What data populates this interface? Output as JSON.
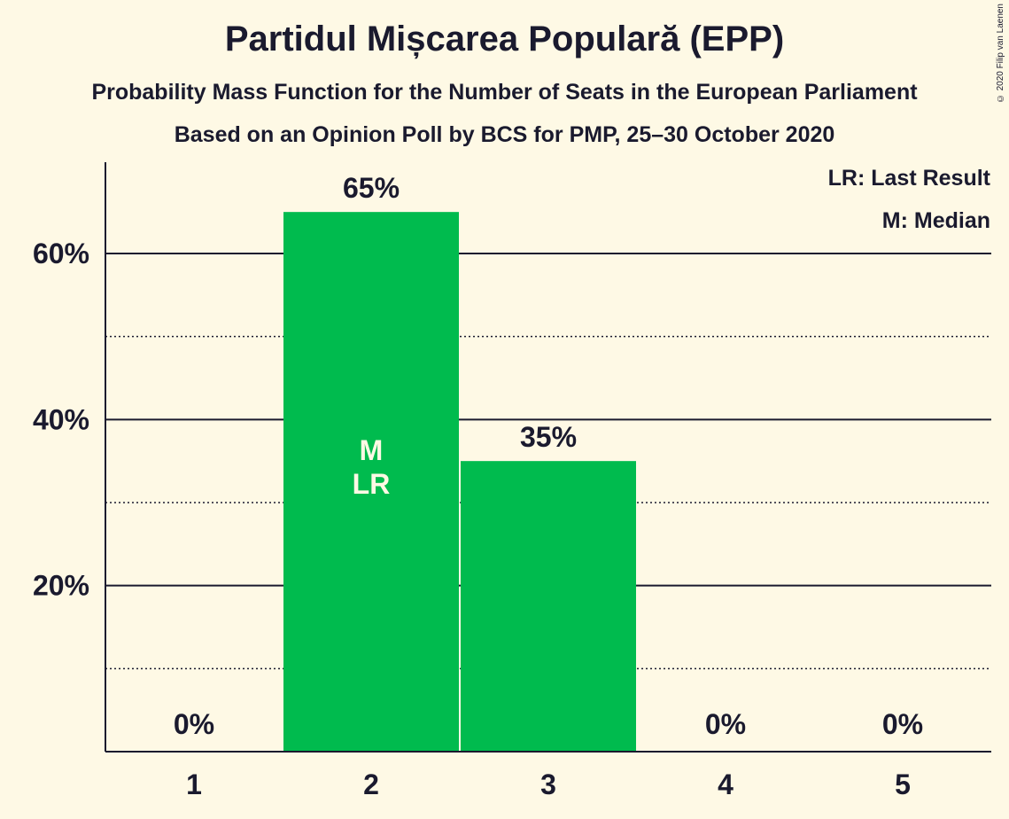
{
  "header": {
    "title": "Partidul Mișcarea Populară (EPP)",
    "subtitle": "Probability Mass Function for the Number of Seats in the European Parliament",
    "source": "Based on an Opinion Poll by BCS for PMP, 25–30 October 2020",
    "copyright": "© 2020 Filip van Laenen"
  },
  "legend": {
    "items": [
      "LR: Last Result",
      "M: Median"
    ]
  },
  "colors": {
    "bar": "#00bb4e",
    "background": "#fef9e5",
    "text": "#1a1a2e"
  },
  "chart_data": {
    "type": "bar",
    "categories": [
      "1",
      "2",
      "3",
      "4",
      "5"
    ],
    "values": [
      0,
      65,
      35,
      0,
      0
    ],
    "value_labels": [
      "0%",
      "65%",
      "35%",
      "0%",
      "0%"
    ],
    "ylim": [
      0,
      70
    ],
    "yticks": [
      {
        "value": 20,
        "label": "20%"
      },
      {
        "value": 40,
        "label": "40%"
      },
      {
        "value": 60,
        "label": "60%"
      }
    ],
    "minor_gridlines": [
      10,
      30,
      50
    ],
    "bar_markers": [
      {
        "category": "2",
        "labels": [
          "M",
          "LR"
        ]
      }
    ],
    "xlabel": "",
    "ylabel": ""
  }
}
